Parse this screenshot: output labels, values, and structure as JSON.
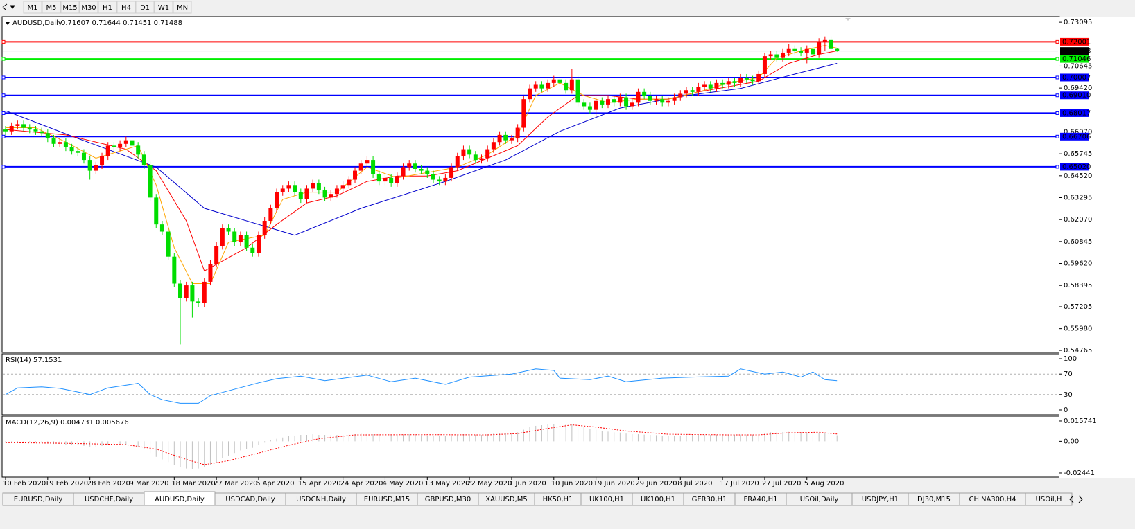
{
  "toolbar": {
    "timeframes": [
      "M1",
      "M5",
      "M15",
      "M30",
      "H1",
      "H4",
      "D1",
      "W1",
      "MN"
    ]
  },
  "chart": {
    "header": "AUDUSD,Daily",
    "header_ohlc": "0.71607 0.71644 0.71451 0.71488",
    "ylim": [
      0.5469,
      0.7337
    ],
    "yticks": [
      {
        "value": 0.73095,
        "label": "0.73095"
      },
      {
        "value": 0.70645,
        "label": "0.70645"
      },
      {
        "value": 0.6942,
        "label": "0.69420"
      },
      {
        "value": 0.6697,
        "label": "0.66970"
      },
      {
        "value": 0.65745,
        "label": "0.65745"
      },
      {
        "value": 0.6452,
        "label": "0.64520"
      },
      {
        "value": 0.63295,
        "label": "0.63295"
      },
      {
        "value": 0.6207,
        "label": "0.62070"
      },
      {
        "value": 0.60845,
        "label": "0.60845"
      },
      {
        "value": 0.5962,
        "label": "0.59620"
      },
      {
        "value": 0.58395,
        "label": "0.58395"
      },
      {
        "value": 0.57205,
        "label": "0.57205"
      },
      {
        "value": 0.5598,
        "label": "0.55980"
      },
      {
        "value": 0.54765,
        "label": "0.54765"
      }
    ],
    "up_color": "#ff0000",
    "down_color": "#00dd00",
    "x_labels": [
      "10 Feb 2020",
      "19 Feb 2020",
      "28 Feb 2020",
      "9 Mar 2020",
      "18 Mar 2020",
      "27 Mar 2020",
      "6 Apr 2020",
      "15 Apr 2020",
      "24 Apr 2020",
      "4 May 2020",
      "13 May 2020",
      "22 May 2020",
      "1 Jun 2020",
      "10 Jun 2020",
      "19 Jun 2020",
      "29 Jun 2020",
      "8 Jul 2020",
      "17 Jul 2020",
      "27 Jul 2020",
      "5 Aug 2020"
    ],
    "candles": {
      "open": [
        0.671,
        0.67,
        0.673,
        0.674,
        0.672,
        0.671,
        0.67,
        0.669,
        0.666,
        0.663,
        0.664,
        0.661,
        0.659,
        0.658,
        0.654,
        0.648,
        0.651,
        0.656,
        0.662,
        0.661,
        0.663,
        0.665,
        0.662,
        0.657,
        0.651,
        0.633,
        0.618,
        0.614,
        0.6,
        0.585,
        0.577,
        0.584,
        0.575,
        0.574,
        0.586,
        0.596,
        0.606,
        0.616,
        0.614,
        0.608,
        0.612,
        0.605,
        0.602,
        0.612,
        0.62,
        0.627,
        0.636,
        0.638,
        0.64,
        0.636,
        0.632,
        0.638,
        0.641,
        0.637,
        0.633,
        0.635,
        0.638,
        0.64,
        0.643,
        0.648,
        0.652,
        0.654,
        0.646,
        0.642,
        0.644,
        0.641,
        0.645,
        0.65,
        0.652,
        0.649,
        0.648,
        0.646,
        0.643,
        0.642,
        0.644,
        0.65,
        0.656,
        0.66,
        0.657,
        0.654,
        0.655,
        0.66,
        0.664,
        0.668,
        0.665,
        0.666,
        0.672,
        0.688,
        0.694,
        0.696,
        0.694,
        0.697,
        0.699,
        0.697,
        0.693,
        0.699,
        0.686,
        0.684,
        0.682,
        0.687,
        0.685,
        0.688,
        0.686,
        0.689,
        0.684,
        0.686,
        0.692,
        0.69,
        0.687,
        0.688,
        0.686,
        0.687,
        0.689,
        0.691,
        0.693,
        0.692,
        0.695,
        0.696,
        0.694,
        0.697,
        0.696,
        0.698,
        0.697,
        0.7,
        0.699,
        0.698,
        0.702,
        0.712,
        0.713,
        0.711,
        0.714,
        0.716,
        0.715,
        0.714,
        0.716,
        0.713,
        0.72,
        0.721,
        0.71607
      ],
      "high": [
        0.673,
        0.675,
        0.676,
        0.676,
        0.674,
        0.673,
        0.672,
        0.671,
        0.668,
        0.666,
        0.666,
        0.663,
        0.661,
        0.66,
        0.656,
        0.653,
        0.658,
        0.664,
        0.664,
        0.665,
        0.667,
        0.667,
        0.664,
        0.659,
        0.653,
        0.635,
        0.62,
        0.616,
        0.602,
        0.587,
        0.586,
        0.586,
        0.577,
        0.588,
        0.598,
        0.608,
        0.618,
        0.618,
        0.616,
        0.614,
        0.614,
        0.607,
        0.614,
        0.622,
        0.629,
        0.638,
        0.64,
        0.642,
        0.642,
        0.638,
        0.64,
        0.643,
        0.643,
        0.639,
        0.637,
        0.64,
        0.642,
        0.645,
        0.65,
        0.654,
        0.656,
        0.656,
        0.648,
        0.646,
        0.646,
        0.647,
        0.652,
        0.654,
        0.654,
        0.651,
        0.65,
        0.648,
        0.645,
        0.646,
        0.652,
        0.658,
        0.662,
        0.662,
        0.659,
        0.657,
        0.662,
        0.666,
        0.67,
        0.67,
        0.668,
        0.674,
        0.69,
        0.696,
        0.698,
        0.698,
        0.699,
        0.701,
        0.701,
        0.699,
        0.705,
        0.701,
        0.688,
        0.686,
        0.689,
        0.689,
        0.69,
        0.69,
        0.691,
        0.691,
        0.688,
        0.694,
        0.694,
        0.692,
        0.69,
        0.69,
        0.689,
        0.691,
        0.693,
        0.695,
        0.695,
        0.697,
        0.698,
        0.698,
        0.699,
        0.699,
        0.7,
        0.7,
        0.702,
        0.702,
        0.701,
        0.704,
        0.714,
        0.715,
        0.715,
        0.716,
        0.719,
        0.718,
        0.717,
        0.718,
        0.718,
        0.722,
        0.723,
        0.723,
        0.71644
      ],
      "low": [
        0.668,
        0.668,
        0.671,
        0.67,
        0.669,
        0.668,
        0.667,
        0.664,
        0.661,
        0.661,
        0.659,
        0.657,
        0.656,
        0.652,
        0.643,
        0.646,
        0.649,
        0.654,
        0.659,
        0.659,
        0.661,
        0.63,
        0.655,
        0.649,
        0.631,
        0.616,
        0.612,
        0.598,
        0.583,
        0.551,
        0.575,
        0.566,
        0.572,
        0.572,
        0.584,
        0.594,
        0.604,
        0.612,
        0.606,
        0.606,
        0.603,
        0.6,
        0.6,
        0.61,
        0.618,
        0.625,
        0.634,
        0.636,
        0.634,
        0.63,
        0.63,
        0.636,
        0.635,
        0.631,
        0.631,
        0.633,
        0.636,
        0.638,
        0.641,
        0.646,
        0.65,
        0.644,
        0.64,
        0.64,
        0.639,
        0.639,
        0.643,
        0.648,
        0.647,
        0.646,
        0.644,
        0.641,
        0.64,
        0.64,
        0.642,
        0.648,
        0.654,
        0.655,
        0.652,
        0.652,
        0.653,
        0.658,
        0.662,
        0.663,
        0.663,
        0.664,
        0.67,
        0.686,
        0.692,
        0.692,
        0.692,
        0.695,
        0.695,
        0.691,
        0.691,
        0.684,
        0.682,
        0.68,
        0.678,
        0.683,
        0.683,
        0.684,
        0.684,
        0.682,
        0.682,
        0.684,
        0.688,
        0.685,
        0.685,
        0.684,
        0.684,
        0.685,
        0.687,
        0.689,
        0.69,
        0.69,
        0.693,
        0.692,
        0.692,
        0.694,
        0.694,
        0.695,
        0.695,
        0.697,
        0.696,
        0.696,
        0.7,
        0.71,
        0.709,
        0.709,
        0.712,
        0.713,
        0.712,
        0.708,
        0.711,
        0.711,
        0.715,
        0.713,
        0.71451
      ],
      "close": [
        0.67,
        0.673,
        0.674,
        0.672,
        0.671,
        0.67,
        0.669,
        0.666,
        0.663,
        0.664,
        0.661,
        0.659,
        0.658,
        0.654,
        0.648,
        0.651,
        0.656,
        0.662,
        0.661,
        0.663,
        0.665,
        0.662,
        0.657,
        0.651,
        0.633,
        0.618,
        0.614,
        0.6,
        0.585,
        0.577,
        0.584,
        0.575,
        0.574,
        0.586,
        0.596,
        0.606,
        0.616,
        0.614,
        0.608,
        0.612,
        0.605,
        0.602,
        0.612,
        0.62,
        0.627,
        0.636,
        0.638,
        0.64,
        0.636,
        0.632,
        0.638,
        0.641,
        0.637,
        0.633,
        0.635,
        0.638,
        0.64,
        0.643,
        0.648,
        0.652,
        0.654,
        0.646,
        0.642,
        0.644,
        0.641,
        0.645,
        0.65,
        0.652,
        0.649,
        0.648,
        0.646,
        0.643,
        0.642,
        0.644,
        0.65,
        0.656,
        0.66,
        0.657,
        0.654,
        0.655,
        0.66,
        0.664,
        0.668,
        0.665,
        0.666,
        0.672,
        0.688,
        0.694,
        0.696,
        0.694,
        0.697,
        0.699,
        0.697,
        0.693,
        0.699,
        0.686,
        0.684,
        0.682,
        0.687,
        0.685,
        0.688,
        0.686,
        0.689,
        0.684,
        0.686,
        0.692,
        0.69,
        0.687,
        0.688,
        0.686,
        0.687,
        0.689,
        0.691,
        0.693,
        0.692,
        0.695,
        0.696,
        0.694,
        0.697,
        0.696,
        0.698,
        0.697,
        0.7,
        0.699,
        0.698,
        0.702,
        0.712,
        0.713,
        0.711,
        0.714,
        0.716,
        0.715,
        0.714,
        0.716,
        0.713,
        0.72,
        0.721,
        0.716,
        0.71488
      ]
    },
    "ma": [
      {
        "color": "#0000cd",
        "x": [
          0,
          12,
          25,
          33,
          48,
          59,
          73,
          83,
          92,
          102,
          113,
          122,
          131,
          138
        ],
        "values": [
          0.6815,
          0.666,
          0.65,
          0.627,
          0.612,
          0.627,
          0.642,
          0.654,
          0.67,
          0.683,
          0.69,
          0.694,
          0.702,
          0.708
        ]
      },
      {
        "color": "#ff0000",
        "x": [
          0,
          10,
          20,
          25,
          30,
          33,
          40,
          45,
          50,
          55,
          60,
          65,
          70,
          75,
          80,
          85,
          90,
          95,
          100,
          105,
          110,
          115,
          120,
          125,
          130,
          135,
          138
        ],
        "values": [
          0.671,
          0.668,
          0.66,
          0.648,
          0.62,
          0.592,
          0.605,
          0.618,
          0.63,
          0.634,
          0.642,
          0.645,
          0.645,
          0.648,
          0.655,
          0.662,
          0.678,
          0.69,
          0.69,
          0.688,
          0.688,
          0.692,
          0.695,
          0.698,
          0.708,
          0.713,
          0.715
        ]
      },
      {
        "color": "#ffa500",
        "x": [
          0,
          5,
          10,
          15,
          20,
          22,
          25,
          28,
          31,
          34,
          37,
          40,
          43,
          46,
          50,
          55,
          60,
          65,
          70,
          75,
          80,
          85,
          88,
          92,
          96,
          100,
          105,
          110,
          115,
          120,
          125,
          128,
          132,
          136,
          138
        ],
        "values": [
          0.672,
          0.672,
          0.664,
          0.655,
          0.66,
          0.662,
          0.64,
          0.605,
          0.585,
          0.585,
          0.608,
          0.61,
          0.612,
          0.632,
          0.636,
          0.636,
          0.65,
          0.644,
          0.647,
          0.65,
          0.657,
          0.668,
          0.69,
          0.697,
          0.69,
          0.686,
          0.688,
          0.688,
          0.692,
          0.697,
          0.7,
          0.711,
          0.715,
          0.718,
          0.7165
        ]
      }
    ],
    "levels": [
      {
        "value": 0.72001,
        "label": "0.72001",
        "color": "#ff0000"
      },
      {
        "value": 0.71046,
        "label": "0.71046",
        "color": "#00ee00"
      },
      {
        "value": 0.70007,
        "label": "0.70007",
        "color": "#0000ff"
      },
      {
        "value": 0.6901,
        "label": "0.69010",
        "color": "#0000ff"
      },
      {
        "value": 0.68017,
        "label": "0.68017",
        "color": "#0000ff"
      },
      {
        "value": 0.66706,
        "label": "0.66706",
        "color": "#0000ff"
      },
      {
        "value": 0.6502,
        "label": "0.65020",
        "color": "#0000ff"
      }
    ],
    "bid": {
      "value": 0.71488,
      "label": "0.71488",
      "color": "#000000"
    }
  },
  "rsi": {
    "label": "RSI(14) 57.1531",
    "ylim": [
      0,
      100
    ],
    "yticks": [
      100,
      70,
      30,
      0
    ],
    "levels": [
      70,
      30
    ],
    "color": "#1e90ff",
    "x": [
      0,
      2,
      6,
      9,
      12,
      14,
      17,
      21,
      22,
      24,
      26,
      29,
      32,
      34,
      42,
      45,
      49,
      53,
      60,
      64,
      68,
      73,
      77,
      84,
      88,
      91,
      92,
      97,
      100,
      103,
      109,
      114,
      120,
      122,
      126,
      129,
      132,
      134,
      136,
      138
    ],
    "values": [
      30,
      43,
      45,
      42,
      35,
      30,
      43,
      50,
      52,
      30,
      20,
      13,
      13,
      28,
      53,
      61,
      66,
      57,
      68,
      55,
      62,
      50,
      64,
      70,
      80,
      77,
      62,
      59,
      66,
      55,
      62,
      64,
      66,
      80,
      70,
      74,
      64,
      74,
      59,
      57.1531
    ]
  },
  "macd": {
    "label": "MACD(12,26,9) 0.004731 0.005676",
    "ylim": [
      -0.0271,
      0.0184
    ],
    "yticks": [
      {
        "value": 0.015741,
        "label": "0.015741"
      },
      {
        "value": 0,
        "label": "0.00"
      },
      {
        "value": -0.02441,
        "label": "-0.02441"
      }
    ],
    "hist_color": "#c0c0c0",
    "signal_color": "#ff0000",
    "values": [
      -0.001,
      -0.001,
      -0.0008,
      -0.0008,
      -0.001,
      -0.001,
      -0.0012,
      -0.0015,
      -0.002,
      -0.002,
      -0.0025,
      -0.003,
      -0.003,
      -0.0035,
      -0.004,
      -0.004,
      -0.0035,
      -0.003,
      -0.003,
      -0.0028,
      -0.0025,
      -0.003,
      -0.004,
      -0.006,
      -0.009,
      -0.012,
      -0.014,
      -0.016,
      -0.018,
      -0.02,
      -0.021,
      -0.0215,
      -0.021,
      -0.02,
      -0.018,
      -0.016,
      -0.013,
      -0.011,
      -0.009,
      -0.007,
      -0.006,
      -0.005,
      -0.003,
      -0.001,
      0.001,
      0.002,
      0.003,
      0.004,
      0.0045,
      0.005,
      0.005,
      0.0055,
      0.005,
      0.005,
      0.0048,
      0.005,
      0.005,
      0.0052,
      0.0055,
      0.006,
      0.006,
      0.0055,
      0.005,
      0.005,
      0.0048,
      0.005,
      0.0052,
      0.0055,
      0.005,
      0.0048,
      0.0045,
      0.004,
      0.004,
      0.004,
      0.0045,
      0.005,
      0.0055,
      0.0055,
      0.005,
      0.005,
      0.0055,
      0.006,
      0.0065,
      0.0065,
      0.0065,
      0.007,
      0.009,
      0.011,
      0.012,
      0.0125,
      0.013,
      0.0135,
      0.0135,
      0.013,
      0.013,
      0.012,
      0.011,
      0.0095,
      0.009,
      0.008,
      0.0075,
      0.007,
      0.0068,
      0.006,
      0.0055,
      0.0055,
      0.0052,
      0.005,
      0.0048,
      0.0045,
      0.0045,
      0.0045,
      0.0045,
      0.0048,
      0.005,
      0.005,
      0.0052,
      0.005,
      0.005,
      0.005,
      0.005,
      0.005,
      0.0052,
      0.0052,
      0.005,
      0.0055,
      0.0065,
      0.007,
      0.0072,
      0.0072,
      0.0073,
      0.0072,
      0.007,
      0.0068,
      0.0065,
      0.0065,
      0.0063,
      0.0055,
      0.004731
    ],
    "signal_x": [
      0,
      10,
      20,
      25,
      30,
      33,
      37,
      42,
      47,
      52,
      58,
      70,
      80,
      85,
      90,
      94,
      98,
      103,
      110,
      120,
      125,
      130,
      135,
      138
    ],
    "signal": [
      -0.001,
      -0.0015,
      -0.0025,
      -0.006,
      -0.014,
      -0.018,
      -0.015,
      -0.009,
      -0.003,
      0.002,
      0.005,
      0.0052,
      0.005,
      0.006,
      0.01,
      0.0128,
      0.011,
      0.008,
      0.0055,
      0.005,
      0.005,
      0.0066,
      0.007,
      0.005676
    ]
  },
  "tabs": {
    "active": 2,
    "items": [
      "EURUSD,Daily",
      "USDCHF,Daily",
      "AUDUSD,Daily",
      "USDCAD,Daily",
      "USDCNH,Daily",
      "EURUSD,M15",
      "GBPUSD,M30",
      "XAUUSD,M5",
      "HK50,H1",
      "UK100,H1",
      "UK100,H1",
      "GER30,H1",
      "FRA40,H1",
      "USOil,Daily",
      "USDJPY,H1",
      "DJ30,M15",
      "CHINA300,H4",
      "USOil,H"
    ]
  }
}
